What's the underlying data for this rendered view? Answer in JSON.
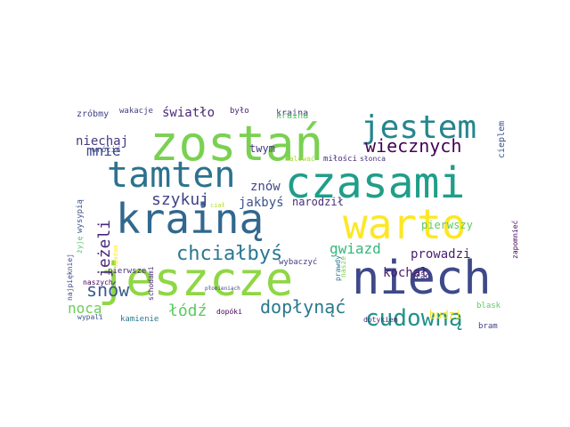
{
  "words": [
    {
      "text": "zostań",
      "color": "#7ad151"
    },
    {
      "text": "jestem",
      "color": "#25858e"
    },
    {
      "text": "tamten",
      "color": "#2c728e"
    },
    {
      "text": "czasami",
      "color": "#1f9e89"
    },
    {
      "text": "kraina",
      "color": "#472d7b"
    },
    {
      "text": "krainą",
      "color": "#31688e"
    },
    {
      "text": "warto",
      "color": "#fde725"
    },
    {
      "text": "jeszcze",
      "color": "#8fd744"
    },
    {
      "text": "niech",
      "color": "#3e4989"
    },
    {
      "text": "cudowną",
      "color": "#21918c"
    },
    {
      "text": "chciałbyś",
      "color": "#2a788e"
    },
    {
      "text": "wiecznych",
      "color": "#440154"
    },
    {
      "text": "szykuj",
      "color": "#414487"
    },
    {
      "text": "jeżeli",
      "color": "#482878"
    },
    {
      "text": "snów",
      "color": "#38598c"
    },
    {
      "text": "dopłynąć",
      "color": "#2a788e"
    },
    {
      "text": "gwiazd",
      "color": "#35b779"
    },
    {
      "text": "mnie",
      "color": "#3e4989"
    },
    {
      "text": "niechaj",
      "color": "#443983"
    },
    {
      "text": "światło",
      "color": "#482878"
    },
    {
      "text": "łódź",
      "color": "#5ec962"
    },
    {
      "text": "nocą",
      "color": "#6ece58"
    },
    {
      "text": "jakbyś",
      "color": "#3b528b"
    },
    {
      "text": "narodził",
      "color": "#472d7b"
    },
    {
      "text": "kochał",
      "color": "#481a6c"
    },
    {
      "text": "prowadzi",
      "color": "#481f70"
    },
    {
      "text": "znów",
      "color": "#404688"
    },
    {
      "text": "twym",
      "color": "#453781"
    },
    {
      "text": "pierwszy",
      "color": "#5ec962"
    },
    {
      "text": "budzi",
      "color": "#f1e51d"
    },
    {
      "text": "kraina",
      "color": "#54c568"
    },
    {
      "text": "cieplem",
      "color": "#3b528b"
    },
    {
      "text": "zróbmy",
      "color": "#414487"
    },
    {
      "text": "wakacje",
      "color": "#424086"
    },
    {
      "text": "było",
      "color": "#482475"
    },
    {
      "text": "wrócić",
      "color": "#3e4989"
    },
    {
      "text": "malować",
      "color": "#9fda3a"
    },
    {
      "text": "miłości",
      "color": "#472d7b"
    },
    {
      "text": "słonca",
      "color": "#46327e"
    },
    {
      "text": "wysypią",
      "color": "#3b528b"
    },
    {
      "text": "żyję",
      "color": "#54c568"
    },
    {
      "text": "najpiękniej",
      "color": "#3e4989"
    },
    {
      "text": "ciał",
      "color": "#b5de2b"
    },
    {
      "text": "pierwsze",
      "color": "#472d7b"
    },
    {
      "text": "naszych",
      "color": "#440154"
    },
    {
      "text": "płomieniach",
      "color": "#3e4989"
    },
    {
      "text": "schodami",
      "color": "#482878"
    },
    {
      "text": "wybaczyć",
      "color": "#433e85"
    },
    {
      "text": "prawdy",
      "color": "#2c728e"
    },
    {
      "text": "nasze",
      "color": "#7ad151"
    },
    {
      "text": "grad",
      "color": "#46327e"
    },
    {
      "text": "zapomnieć",
      "color": "#46085c"
    },
    {
      "text": "blask",
      "color": "#5ec962"
    },
    {
      "text": "bram",
      "color": "#424086"
    },
    {
      "text": "wypali",
      "color": "#3b528b"
    },
    {
      "text": "kamienie",
      "color": "#2a788e"
    },
    {
      "text": "dopóki",
      "color": "#440154"
    },
    {
      "text": "dotykiem",
      "color": "#482878"
    },
    {
      "text": "spadam",
      "color": "#fde725"
    }
  ]
}
